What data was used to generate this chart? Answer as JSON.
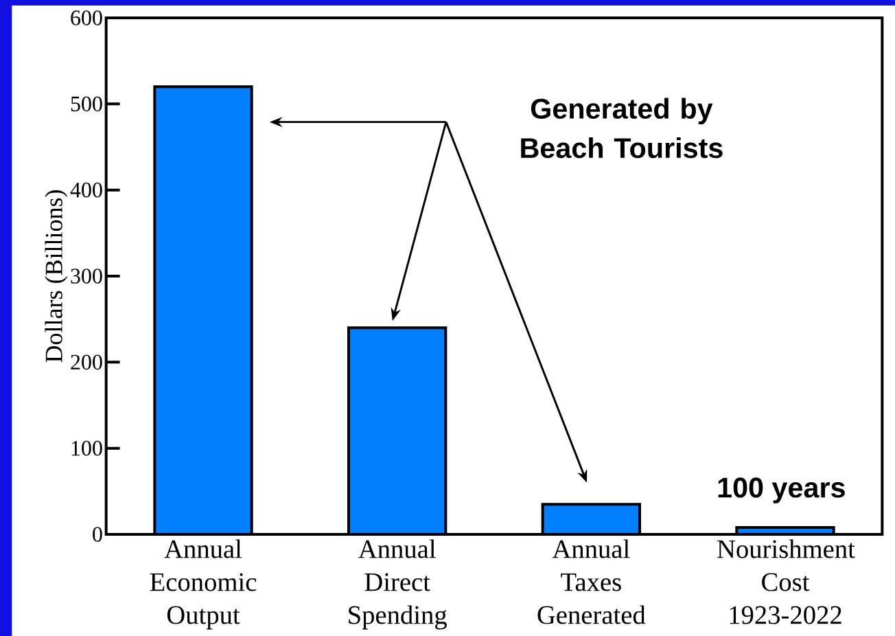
{
  "chart_data": {
    "type": "bar",
    "ylabel": "Dollars (Billions)",
    "categories": [
      "Annual Economic Output",
      "Annual Direct Spending",
      "Annual Taxes Generated",
      "Nourishment Cost 1923-2022"
    ],
    "values": [
      520,
      240,
      35,
      8
    ],
    "color": "#0080ff",
    "ylim": [
      0,
      600
    ],
    "yticks": [
      0,
      100,
      200,
      300,
      400,
      500,
      600
    ],
    "annotations": [
      "Generated by Beach Tourists",
      "100 years"
    ]
  }
}
